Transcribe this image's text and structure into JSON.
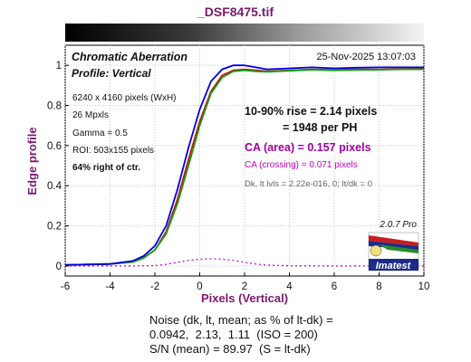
{
  "window_title": "_DSF8475.tif",
  "panel": {
    "title": "Chromatic Aberration",
    "subtitle": "Profile: Vertical",
    "timestamp": "25-Nov-2025 13:07:03",
    "image_info": [
      "6240 x 4160 pixels (WxH)",
      "26 Mpxls",
      "Gamma = 0.5",
      "ROI: 503x155 pixels",
      "64% right of ctr."
    ],
    "rise_line1": "10-90% rise = 2.14 pixels",
    "rise_line2": "= 1948 per PH",
    "ca_area": "CA (area) = 0.157 pixels",
    "ca_crossing": "CA (crossing) = 0.071 pixels",
    "dark_light": "Dk, lt lvls = 2.22e-016, 0;  lt/dk = 0",
    "version": "2.0.7  Pro",
    "logo_text": "Imatest"
  },
  "footer": {
    "line1": "Noise (dk, lt, mean; as % of lt-dk) =",
    "line2": "0.0942,  2.13,  1.11  (ISO = 200)",
    "line3": "S/N (mean) = 89.97  (S = lt-dk)"
  },
  "colors": {
    "red": "#d01010",
    "green": "#10a010",
    "blue": "#0000e0",
    "ca_line": "#c000c0",
    "title": "#7a1a6f"
  },
  "chart_data": {
    "type": "line",
    "xlabel": "Pixels (Vertical)",
    "ylabel": "Edge profile",
    "xlim": [
      -6,
      10
    ],
    "ylim": [
      -0.05,
      1.1
    ],
    "x_ticks": [
      -6,
      -4,
      -2,
      0,
      2,
      4,
      6,
      8,
      10
    ],
    "y_ticks": [
      0,
      0.2,
      0.4,
      0.6,
      0.8,
      1
    ],
    "y_tick_labels": [
      "0",
      "0.2",
      "0.4",
      "0.6",
      "0.8",
      "1"
    ],
    "grid": true,
    "series": [
      {
        "color": "red",
        "x": [
          -6,
          -4,
          -3,
          -2.5,
          -2,
          -1.5,
          -1,
          -0.5,
          0,
          0.5,
          1,
          1.5,
          2,
          2.5,
          3,
          4,
          5,
          6,
          7,
          8,
          9,
          10
        ],
        "y": [
          0.005,
          0.01,
          0.02,
          0.04,
          0.08,
          0.17,
          0.33,
          0.53,
          0.72,
          0.87,
          0.95,
          0.975,
          0.98,
          0.975,
          0.97,
          0.975,
          0.98,
          0.978,
          0.98,
          0.98,
          0.982,
          0.983
        ]
      },
      {
        "color": "green",
        "x": [
          -6,
          -4,
          -3,
          -2.5,
          -2,
          -1.5,
          -1,
          -0.5,
          0,
          0.5,
          1,
          1.5,
          2,
          2.5,
          3,
          4,
          5,
          6,
          7,
          8,
          9,
          10
        ],
        "y": [
          0.005,
          0.01,
          0.02,
          0.04,
          0.08,
          0.16,
          0.31,
          0.5,
          0.7,
          0.86,
          0.94,
          0.97,
          0.975,
          0.97,
          0.968,
          0.973,
          0.978,
          0.975,
          0.977,
          0.978,
          0.98,
          0.98
        ]
      },
      {
        "color": "blue",
        "x": [
          -6,
          -4,
          -3,
          -2.5,
          -2,
          -1.5,
          -1,
          -0.5,
          0,
          0.5,
          1,
          1.5,
          2,
          2.5,
          3,
          4,
          5,
          6,
          7,
          8,
          9,
          10
        ],
        "y": [
          0.005,
          0.01,
          0.025,
          0.05,
          0.1,
          0.2,
          0.38,
          0.59,
          0.78,
          0.92,
          0.98,
          1.0,
          1.0,
          0.99,
          0.98,
          0.985,
          0.99,
          0.985,
          0.988,
          0.99,
          0.99,
          0.99
        ]
      },
      {
        "color": "ca_line",
        "dashed": true,
        "x": [
          -6,
          -4,
          -3,
          -2,
          -1.5,
          -1,
          -0.5,
          0,
          0.5,
          1,
          1.5,
          2,
          2.5,
          3,
          4,
          6,
          10
        ],
        "y": [
          0,
          0,
          0,
          0.002,
          0.008,
          0.018,
          0.028,
          0.034,
          0.036,
          0.034,
          0.028,
          0.018,
          0.01,
          0.004,
          0.001,
          0,
          0
        ]
      }
    ]
  }
}
